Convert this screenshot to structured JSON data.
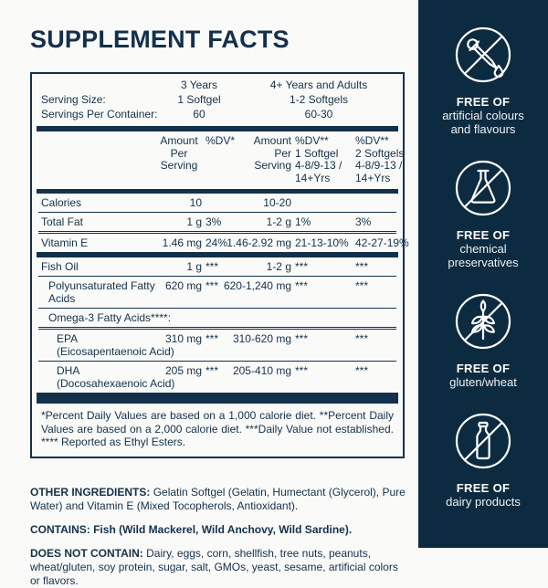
{
  "title": "SUPPLEMENT FACTS",
  "colors": {
    "navy_sidebar": "#0d2b40",
    "text_navy": "#14314b",
    "panel_bg": "#fafaf9",
    "icon_stroke": "#ffffff"
  },
  "table": {
    "serving": {
      "size_label": "Serving Size:",
      "container_label": "Servings Per Container:",
      "group1": {
        "age": "3 Years",
        "dose": "1 Softgel",
        "count": "60"
      },
      "group2": {
        "age": "4+ Years and Adults",
        "dose": "1-2 Softgels",
        "count": "60-30"
      }
    },
    "columns": {
      "amount1": [
        "Amount",
        "Per",
        "Serving"
      ],
      "dv1": [
        "%DV*"
      ],
      "amount2": [
        "Amount",
        "Per",
        "Serving"
      ],
      "dv2": [
        "%DV**",
        "1 Softgel",
        "4-8/9-13 /",
        "14+Yrs"
      ],
      "dv3": [
        "%DV**",
        "2 Softgels",
        "4-8/9-13 /",
        "14+Yrs"
      ]
    },
    "rows": [
      {
        "label": "Calories",
        "indent": 0,
        "a1": "10",
        "dv1": "",
        "a2": "10-20",
        "dv2": "",
        "dv3": "",
        "sep": "thin"
      },
      {
        "label": "Total Fat",
        "indent": 0,
        "a1": "1 g",
        "dv1": "3%",
        "a2": "1-2 g",
        "dv2": "1%",
        "dv3": "3%",
        "sep": "double"
      },
      {
        "label": "Vitamin E",
        "indent": 0,
        "a1": "1.46 mg",
        "dv1": "24%",
        "a2": "1.46-2.92 mg",
        "dv2": "21-13-10%",
        "dv3": "42-27-19%",
        "sep": "bar"
      },
      {
        "label": "Fish Oil",
        "indent": 0,
        "a1": "1 g",
        "dv1": "***",
        "a2": "1-2 g",
        "dv2": "***",
        "dv3": "***",
        "sep": "thin"
      },
      {
        "label": "Polyunsaturated Fatty Acids",
        "wrap": true,
        "indent": 1,
        "a1": "620 mg",
        "dv1": "***",
        "a2": "620-1,240 mg",
        "dv2": "***",
        "dv3": "***",
        "sep": "thin"
      },
      {
        "label": "Omega-3 Fatty Acids****:",
        "indent": 1,
        "a1": "",
        "dv1": "",
        "a2": "",
        "dv2": "",
        "dv3": "",
        "sep": "double"
      },
      {
        "label": "EPA",
        "sub": "(Eicosapentaenoic Acid)",
        "indent": 2,
        "a1": "310 mg",
        "dv1": "***",
        "a2": "310-620 mg",
        "dv2": "***",
        "dv3": "***",
        "sep": "thin"
      },
      {
        "label": "DHA",
        "sub": "(Docosahexaenoic Acid)",
        "indent": 2,
        "a1": "205 mg",
        "dv1": "***",
        "a2": "205-410 mg",
        "dv2": "***",
        "dv3": "***",
        "sep": "bar"
      }
    ],
    "footnote": "*Percent Daily Values are based on a 1,000 calorie diet. **Percent Daily Values are based on a 2,000 calorie diet. ***Daily Value not established. **** Reported as Ethyl Esters."
  },
  "ingredients": {
    "other_label": "OTHER INGREDIENTS:",
    "other_text": "Gelatin Softgel (Gelatin, Humectant (Glycerol), Pure Water) and Vitamin E (Mixed Tocopherols, Antioxidant).",
    "contains": "CONTAINS: Fish (Wild Mackerel, Wild Anchovy, Wild Sardine).",
    "does_not_label": "DOES NOT CONTAIN:",
    "does_not_text": "Dairy, eggs, corn, shellfish, tree nuts, peanuts, wheat/gluten, soy protein, sugar, salt, GMOs, yeast, sesame, artificial colors or flavors."
  },
  "sidebar": {
    "items": [
      {
        "icon": "no-dropper",
        "heading": "FREE OF",
        "lines": [
          "artificial colours",
          "and flavours"
        ]
      },
      {
        "icon": "no-flask",
        "heading": "FREE OF",
        "lines": [
          "chemical",
          "preservatives"
        ]
      },
      {
        "icon": "no-wheat",
        "heading": "FREE OF",
        "lines": [
          "gluten/wheat"
        ]
      },
      {
        "icon": "no-milk-bottle",
        "heading": "FREE OF",
        "lines": [
          "dairy products"
        ]
      }
    ]
  }
}
